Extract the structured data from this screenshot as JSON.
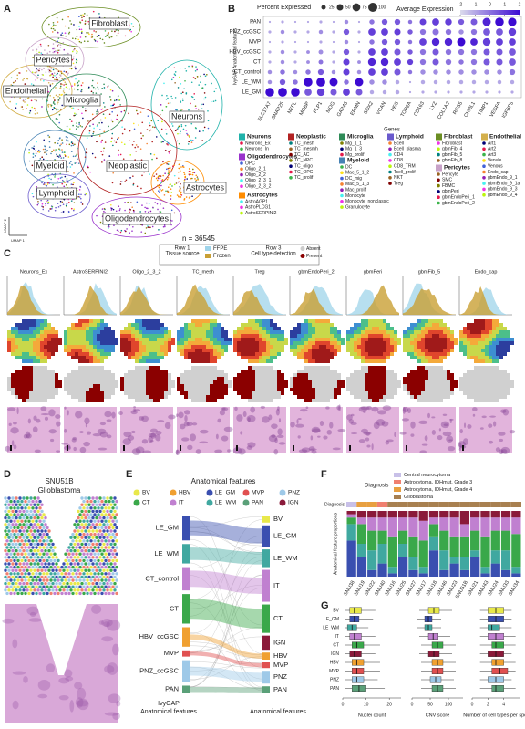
{
  "panel_labels": [
    "A",
    "B",
    "C",
    "D",
    "E",
    "F",
    "G"
  ],
  "panel_a": {
    "clusters": [
      "Fibroblast",
      "Pericytes",
      "Endothelial",
      "Microglia",
      "Neurons",
      "Myeloid",
      "Neoplastic",
      "Lymphoid",
      "Astrocytes",
      "Oligodendrocytes"
    ],
    "n_label": "n = 36545",
    "x_axis": "UMAP 1",
    "y_axis": "UMAP 2"
  },
  "panel_b": {
    "type": "dot",
    "size_title": "Percent Expressed",
    "size_ticks": [
      25,
      50,
      75,
      100
    ],
    "color_title": "Average Expression",
    "color_ticks": [
      -2,
      -1,
      0,
      1,
      2
    ],
    "color_lim": [
      -2,
      2
    ],
    "y_label": "IvyGAP Anatomical features",
    "x_label": "Genes",
    "rows": [
      "PAN",
      "PNZ_ccGSC",
      "MVP",
      "HBV_ccGSC",
      "CT",
      "CT_control",
      "LE_WM",
      "LE_GM"
    ],
    "genes": [
      "SLC17A7",
      "SNAP25",
      "NEFL",
      "MOBP",
      "PLP1",
      "MOG",
      "GAP43",
      "ERMN",
      "SOX2",
      "VCAN",
      "NES",
      "TOP2A",
      "CD163",
      "LYZ",
      "COL1A2",
      "RGS5",
      "CHI3L1",
      "TIMP1",
      "VEGFA",
      "IGFBP5"
    ],
    "pct": [
      [
        5,
        10,
        5,
        5,
        10,
        5,
        20,
        5,
        30,
        40,
        40,
        20,
        50,
        60,
        55,
        40,
        50,
        80,
        90,
        85
      ],
      [
        10,
        20,
        10,
        10,
        20,
        10,
        40,
        10,
        60,
        60,
        50,
        30,
        40,
        50,
        40,
        30,
        40,
        60,
        60,
        70
      ],
      [
        5,
        10,
        5,
        5,
        10,
        5,
        20,
        5,
        30,
        40,
        40,
        20,
        60,
        70,
        70,
        80,
        60,
        70,
        60,
        60
      ],
      [
        10,
        20,
        10,
        15,
        25,
        10,
        40,
        10,
        60,
        60,
        50,
        30,
        40,
        50,
        40,
        40,
        40,
        50,
        50,
        60
      ],
      [
        10,
        20,
        10,
        15,
        25,
        10,
        50,
        15,
        70,
        70,
        60,
        40,
        40,
        50,
        40,
        30,
        40,
        50,
        50,
        60
      ],
      [
        20,
        30,
        20,
        30,
        40,
        20,
        50,
        20,
        60,
        60,
        50,
        20,
        30,
        30,
        30,
        30,
        30,
        30,
        30,
        40
      ],
      [
        20,
        40,
        30,
        90,
        95,
        80,
        30,
        80,
        30,
        30,
        20,
        5,
        20,
        20,
        20,
        20,
        20,
        20,
        20,
        20
      ],
      [
        90,
        95,
        90,
        60,
        70,
        50,
        60,
        50,
        20,
        20,
        20,
        5,
        10,
        10,
        10,
        10,
        10,
        10,
        10,
        10
      ]
    ],
    "avg": [
      [
        -1,
        -1,
        -1,
        -1,
        -1,
        -1,
        -0.5,
        -1,
        0,
        0.5,
        0.5,
        0,
        1,
        1,
        1,
        0.5,
        0.5,
        1.5,
        2,
        2
      ],
      [
        -1,
        -0.5,
        -1,
        -1,
        -0.5,
        -1,
        0.5,
        -1,
        1,
        1,
        1,
        0.5,
        0,
        0,
        0,
        -0.5,
        0,
        0.5,
        0.5,
        1
      ],
      [
        -1,
        -1,
        -1,
        -1,
        -1,
        -1,
        -0.5,
        -1,
        0,
        0.5,
        0.5,
        0,
        1,
        1.5,
        1.5,
        2,
        1.5,
        1,
        1,
        1
      ],
      [
        -1,
        -0.5,
        -1,
        -0.5,
        -0.5,
        -1,
        0.5,
        -1,
        1,
        1,
        0.5,
        0.5,
        0,
        0.5,
        0,
        0,
        0,
        0.5,
        0.5,
        0.5
      ],
      [
        -1,
        -0.5,
        -1,
        -0.5,
        0,
        -1,
        1,
        -0.5,
        1.5,
        1.5,
        1,
        1,
        0,
        0.5,
        0,
        0,
        0,
        0.5,
        0.5,
        0.5
      ],
      [
        -0.5,
        0,
        -0.5,
        0,
        0.5,
        -0.5,
        1,
        -0.5,
        1,
        1,
        0.5,
        0,
        -0.5,
        -0.5,
        -0.5,
        -0.5,
        -0.5,
        -0.5,
        -0.5,
        0
      ],
      [
        -0.5,
        0.5,
        0,
        2,
        2,
        2,
        0,
        2,
        -0.5,
        -0.5,
        -1,
        -1,
        -1,
        -1,
        -1,
        -1,
        -1,
        -1,
        -1,
        -1
      ],
      [
        2,
        2,
        2,
        0.5,
        1,
        0.5,
        1,
        0.5,
        -1,
        -1,
        -1,
        -1,
        -1,
        -1,
        -1,
        -1,
        -1,
        -1,
        -1,
        -1
      ]
    ]
  },
  "cell_types": [
    {
      "name": "Neurons",
      "color": "#20b2aa",
      "items": [
        "Neurons_Ex",
        "Neurons_In"
      ]
    },
    {
      "name": "Oligodendrocytes",
      "color": "#9932cc",
      "items": [
        "OPC",
        "Oligo_2_1",
        "Oligo_2_2",
        "Oligo_2_3_1",
        "Oligo_2_3_2"
      ]
    },
    {
      "name": "Astrocytes",
      "color": "#ff8c00",
      "items": [
        "AstroAGP1",
        "AstroPLCG1",
        "AstroSERPINI2"
      ]
    },
    {
      "name": "Neoplastic",
      "color": "#b22222",
      "items": [
        "TC_mesh",
        "TC_mesmh",
        "TC_AC",
        "TC_NPC",
        "TC_oligo",
        "TC_OPC",
        "TC_prolif"
      ]
    },
    {
      "name": "Microglia",
      "color": "#2e8b57",
      "items": [
        "Mg_1_1",
        "Mg_1_3",
        "Mg_prolif"
      ]
    },
    {
      "name": "Myeloid",
      "color": "#4682b4",
      "items": [
        "DC",
        "Mac_5_1_2",
        "DC_mig",
        "Mac_5_1_3",
        "Mac_prolif",
        "Monocyte",
        "Monocyte_nonclassic",
        "Granulocyte"
      ]
    },
    {
      "name": "Lymphoid",
      "color": "#6a5acd",
      "items": [
        "Bcell",
        "Bcell_plasma",
        "CD4",
        "CD8",
        "CD8_TRM",
        "Tcell_prolif",
        "NKT",
        "Treg"
      ]
    },
    {
      "name": "Fibroblast",
      "color": "#6b8e23",
      "items": [
        "Fibroblast",
        "gbmFib_4",
        "gbmFib_5",
        "gbmFib_8"
      ]
    },
    {
      "name": "Pericytes",
      "color": "#c8a2c8",
      "items": [
        "Pericyte",
        "SMC",
        "FBMC",
        "gbmPeri",
        "gbmEndoPeri_1",
        "gbmEndoPeri_2"
      ]
    },
    {
      "name": "Endothelial",
      "color": "#d4b04c",
      "items": [
        "Art1",
        "Art2",
        "Art3",
        "Venule",
        "Venous",
        "Endo_cap",
        "gbmEndo_9_1",
        "gbmEndo_9_1a",
        "gbmEndo_9_3",
        "gbmEndo_9_4"
      ]
    }
  ],
  "panel_c": {
    "legend": {
      "row1": "Row 1",
      "row1_title": "Tissue source",
      "row1_items": [
        "FFPE",
        "Frozen"
      ],
      "row1_colors": [
        "#9fd4ea",
        "#c9a035"
      ],
      "row3": "Row 3",
      "row3_title": "Cell type detection",
      "row3_items": [
        "Absent",
        "Present"
      ],
      "row3_colors": [
        "#cccccc",
        "#8b0000"
      ]
    },
    "columns": [
      "Neurons_Ex",
      "AstroSERPINI2",
      "Oligo_2_3_2",
      "TC_mesh",
      "Treg",
      "gbmEndoPeri_2",
      "gbmPeri",
      "gbmFib_5",
      "Endo_cap"
    ]
  },
  "panel_d": {
    "sample": "SNU51B",
    "diagnosis": "Glioblastoma"
  },
  "panel_e": {
    "title": "Anatomical features",
    "legend": [
      {
        "name": "BV",
        "color": "#e8e84a"
      },
      {
        "name": "HBV",
        "color": "#f0a030"
      },
      {
        "name": "LE_GM",
        "color": "#3a4fb0"
      },
      {
        "name": "MVP",
        "color": "#e05050"
      },
      {
        "name": "PNZ",
        "color": "#9ec9e8"
      },
      {
        "name": "CT",
        "color": "#3aa84a"
      },
      {
        "name": "IT",
        "color": "#c080d0"
      },
      {
        "name": "LE_WM",
        "color": "#40a8a0"
      },
      {
        "name": "PAN",
        "color": "#5aa078"
      },
      {
        "name": "IGN",
        "color": "#8a1a3a"
      }
    ],
    "left": [
      "LE_GM",
      "LE_WM",
      "CT_control",
      "CT",
      "HBV_ccGSC",
      "MVP",
      "PNZ_ccGSC",
      "PAN"
    ],
    "left_colors": [
      "#3a4fb0",
      "#40a8a0",
      "#c080d0",
      "#3aa84a",
      "#f0a030",
      "#e05050",
      "#9ec9e8",
      "#5aa078"
    ],
    "left_sizes": [
      32,
      25,
      30,
      38,
      25,
      8,
      28,
      10
    ],
    "right": [
      "BV",
      "LE_GM",
      "LE_WM",
      "IT",
      "CT",
      "IGN",
      "HBV",
      "MVP",
      "PNZ",
      "PAN"
    ],
    "right_colors": [
      "#e8e84a",
      "#3a4fb0",
      "#40a8a0",
      "#c080d0",
      "#3aa84a",
      "#8a1a3a",
      "#f0a030",
      "#e05050",
      "#9ec9e8",
      "#5aa078"
    ],
    "right_sizes": [
      10,
      30,
      25,
      45,
      40,
      20,
      10,
      8,
      18,
      10
    ],
    "left_title": [
      "IvyGAP",
      "Anatomical features"
    ],
    "right_title": "Anatomical features"
  },
  "panel_f": {
    "type": "bar",
    "stacked": true,
    "legend_title": "Diagnosis",
    "row_label": "Diagnosis",
    "y_label": "Anatomical feature proportions",
    "diagnoses": [
      {
        "name": "Central neurocytoma",
        "color": "#c8c0e8"
      },
      {
        "name": "Astrocytoma, IDHmut, Grade 3",
        "color": "#f08070"
      },
      {
        "name": "Astrocytoma, IDHmut, Grade 4",
        "color": "#e8a040"
      },
      {
        "name": "Glioblastoma",
        "color": "#a88050"
      }
    ],
    "sample_diagnosis": [
      0,
      2,
      2,
      1,
      3,
      3,
      3,
      3,
      3,
      3,
      3,
      3,
      3,
      3,
      3,
      3,
      3
    ],
    "categories": [
      "SNU38",
      "SNU19",
      "SNU22",
      "SNU40",
      "SNU16",
      "SNU25",
      "SNU27",
      "SNU17",
      "SNU18",
      "SNU46",
      "SNU23",
      "SNU51B",
      "SNU21",
      "SNU43",
      "SNU24",
      "SNU33",
      "SNU34"
    ],
    "series": [
      {
        "name": "LE_GM",
        "color": "#3a4fb0",
        "values": [
          0.55,
          0.3,
          0.1,
          0.2,
          0.05,
          0.3,
          0.1,
          0.05,
          0.4,
          0.1,
          0.2,
          0.1,
          0.3,
          0.05,
          0.2,
          0.1,
          0.05
        ]
      },
      {
        "name": "LE_WM",
        "color": "#40a8a0",
        "values": [
          0.25,
          0.2,
          0.3,
          0.3,
          0.1,
          0.2,
          0.2,
          0.1,
          0.2,
          0.3,
          0.1,
          0.2,
          0.1,
          0.1,
          0.2,
          0.3,
          0.1
        ]
      },
      {
        "name": "CT",
        "color": "#3aa84a",
        "values": [
          0.1,
          0.3,
          0.3,
          0.2,
          0.45,
          0.2,
          0.3,
          0.4,
          0.2,
          0.3,
          0.3,
          0.3,
          0.3,
          0.45,
          0.3,
          0.3,
          0.5
        ]
      },
      {
        "name": "IT",
        "color": "#c080d0",
        "values": [
          0.05,
          0.1,
          0.2,
          0.2,
          0.3,
          0.2,
          0.3,
          0.3,
          0.1,
          0.2,
          0.3,
          0.2,
          0.2,
          0.3,
          0.2,
          0.2,
          0.25
        ]
      },
      {
        "name": "PAN",
        "color": "#8a1a3a",
        "values": [
          0.05,
          0.1,
          0.1,
          0.1,
          0.1,
          0.1,
          0.1,
          0.15,
          0.1,
          0.1,
          0.1,
          0.2,
          0.1,
          0.1,
          0.1,
          0.1,
          0.1
        ]
      }
    ],
    "ylim": [
      0,
      1
    ]
  },
  "panel_g": {
    "type": "box",
    "categories": [
      "BV",
      "LE_GM",
      "LE_WM",
      "IT",
      "CT",
      "IGN",
      "HBV",
      "MVP",
      "PNZ",
      "PAN"
    ],
    "colors": [
      "#e8e84a",
      "#3a4fb0",
      "#40a8a0",
      "#c080d0",
      "#3aa84a",
      "#8a1a3a",
      "#f0a030",
      "#e05050",
      "#9ec9e8",
      "#5aa078"
    ],
    "panels": [
      {
        "x_label": "Nuclei count",
        "xlim": [
          0,
          25
        ],
        "xticks": [
          0,
          10,
          20
        ],
        "boxes": [
          [
            1,
            3,
            5,
            8,
            14
          ],
          [
            1,
            3,
            5,
            7,
            13
          ],
          [
            1,
            2,
            4,
            6,
            11
          ],
          [
            1,
            3,
            5,
            8,
            14
          ],
          [
            1,
            4,
            6,
            9,
            16
          ],
          [
            1,
            3,
            5,
            8,
            14
          ],
          [
            1,
            4,
            6,
            9,
            16
          ],
          [
            1,
            4,
            6,
            9,
            16
          ],
          [
            1,
            4,
            6,
            9,
            15
          ],
          [
            1,
            4,
            7,
            10,
            18
          ]
        ]
      },
      {
        "x_label": "CNV score",
        "xlim": [
          0,
          140
        ],
        "xticks": [
          0,
          50,
          100
        ],
        "boxes": [
          [
            20,
            45,
            60,
            75,
            110
          ],
          [
            15,
            35,
            45,
            55,
            80
          ],
          [
            15,
            35,
            45,
            55,
            80
          ],
          [
            20,
            45,
            58,
            72,
            105
          ],
          [
            25,
            55,
            70,
            85,
            120
          ],
          [
            20,
            45,
            60,
            75,
            110
          ],
          [
            25,
            55,
            70,
            85,
            120
          ],
          [
            25,
            55,
            70,
            85,
            120
          ],
          [
            25,
            50,
            65,
            80,
            115
          ],
          [
            25,
            55,
            70,
            85,
            120
          ]
        ]
      },
      {
        "x_label": "Number of cell types per spot",
        "xlim": [
          0,
          6
        ],
        "xticks": [
          0,
          2,
          4
        ],
        "boxes": [
          [
            1,
            2,
            3,
            4,
            5
          ],
          [
            1,
            2,
            3,
            4,
            5
          ],
          [
            1,
            2,
            2.5,
            3.5,
            5
          ],
          [
            1,
            2,
            3,
            4,
            5.5
          ],
          [
            1,
            2.5,
            3,
            4,
            5.5
          ],
          [
            1,
            2,
            3,
            4,
            5
          ],
          [
            1,
            2.5,
            3,
            4,
            5.5
          ],
          [
            1,
            2.5,
            3.5,
            4.5,
            5.5
          ],
          [
            1,
            2,
            3,
            4,
            5
          ],
          [
            1,
            2.5,
            3,
            4,
            5.5
          ]
        ]
      }
    ]
  }
}
